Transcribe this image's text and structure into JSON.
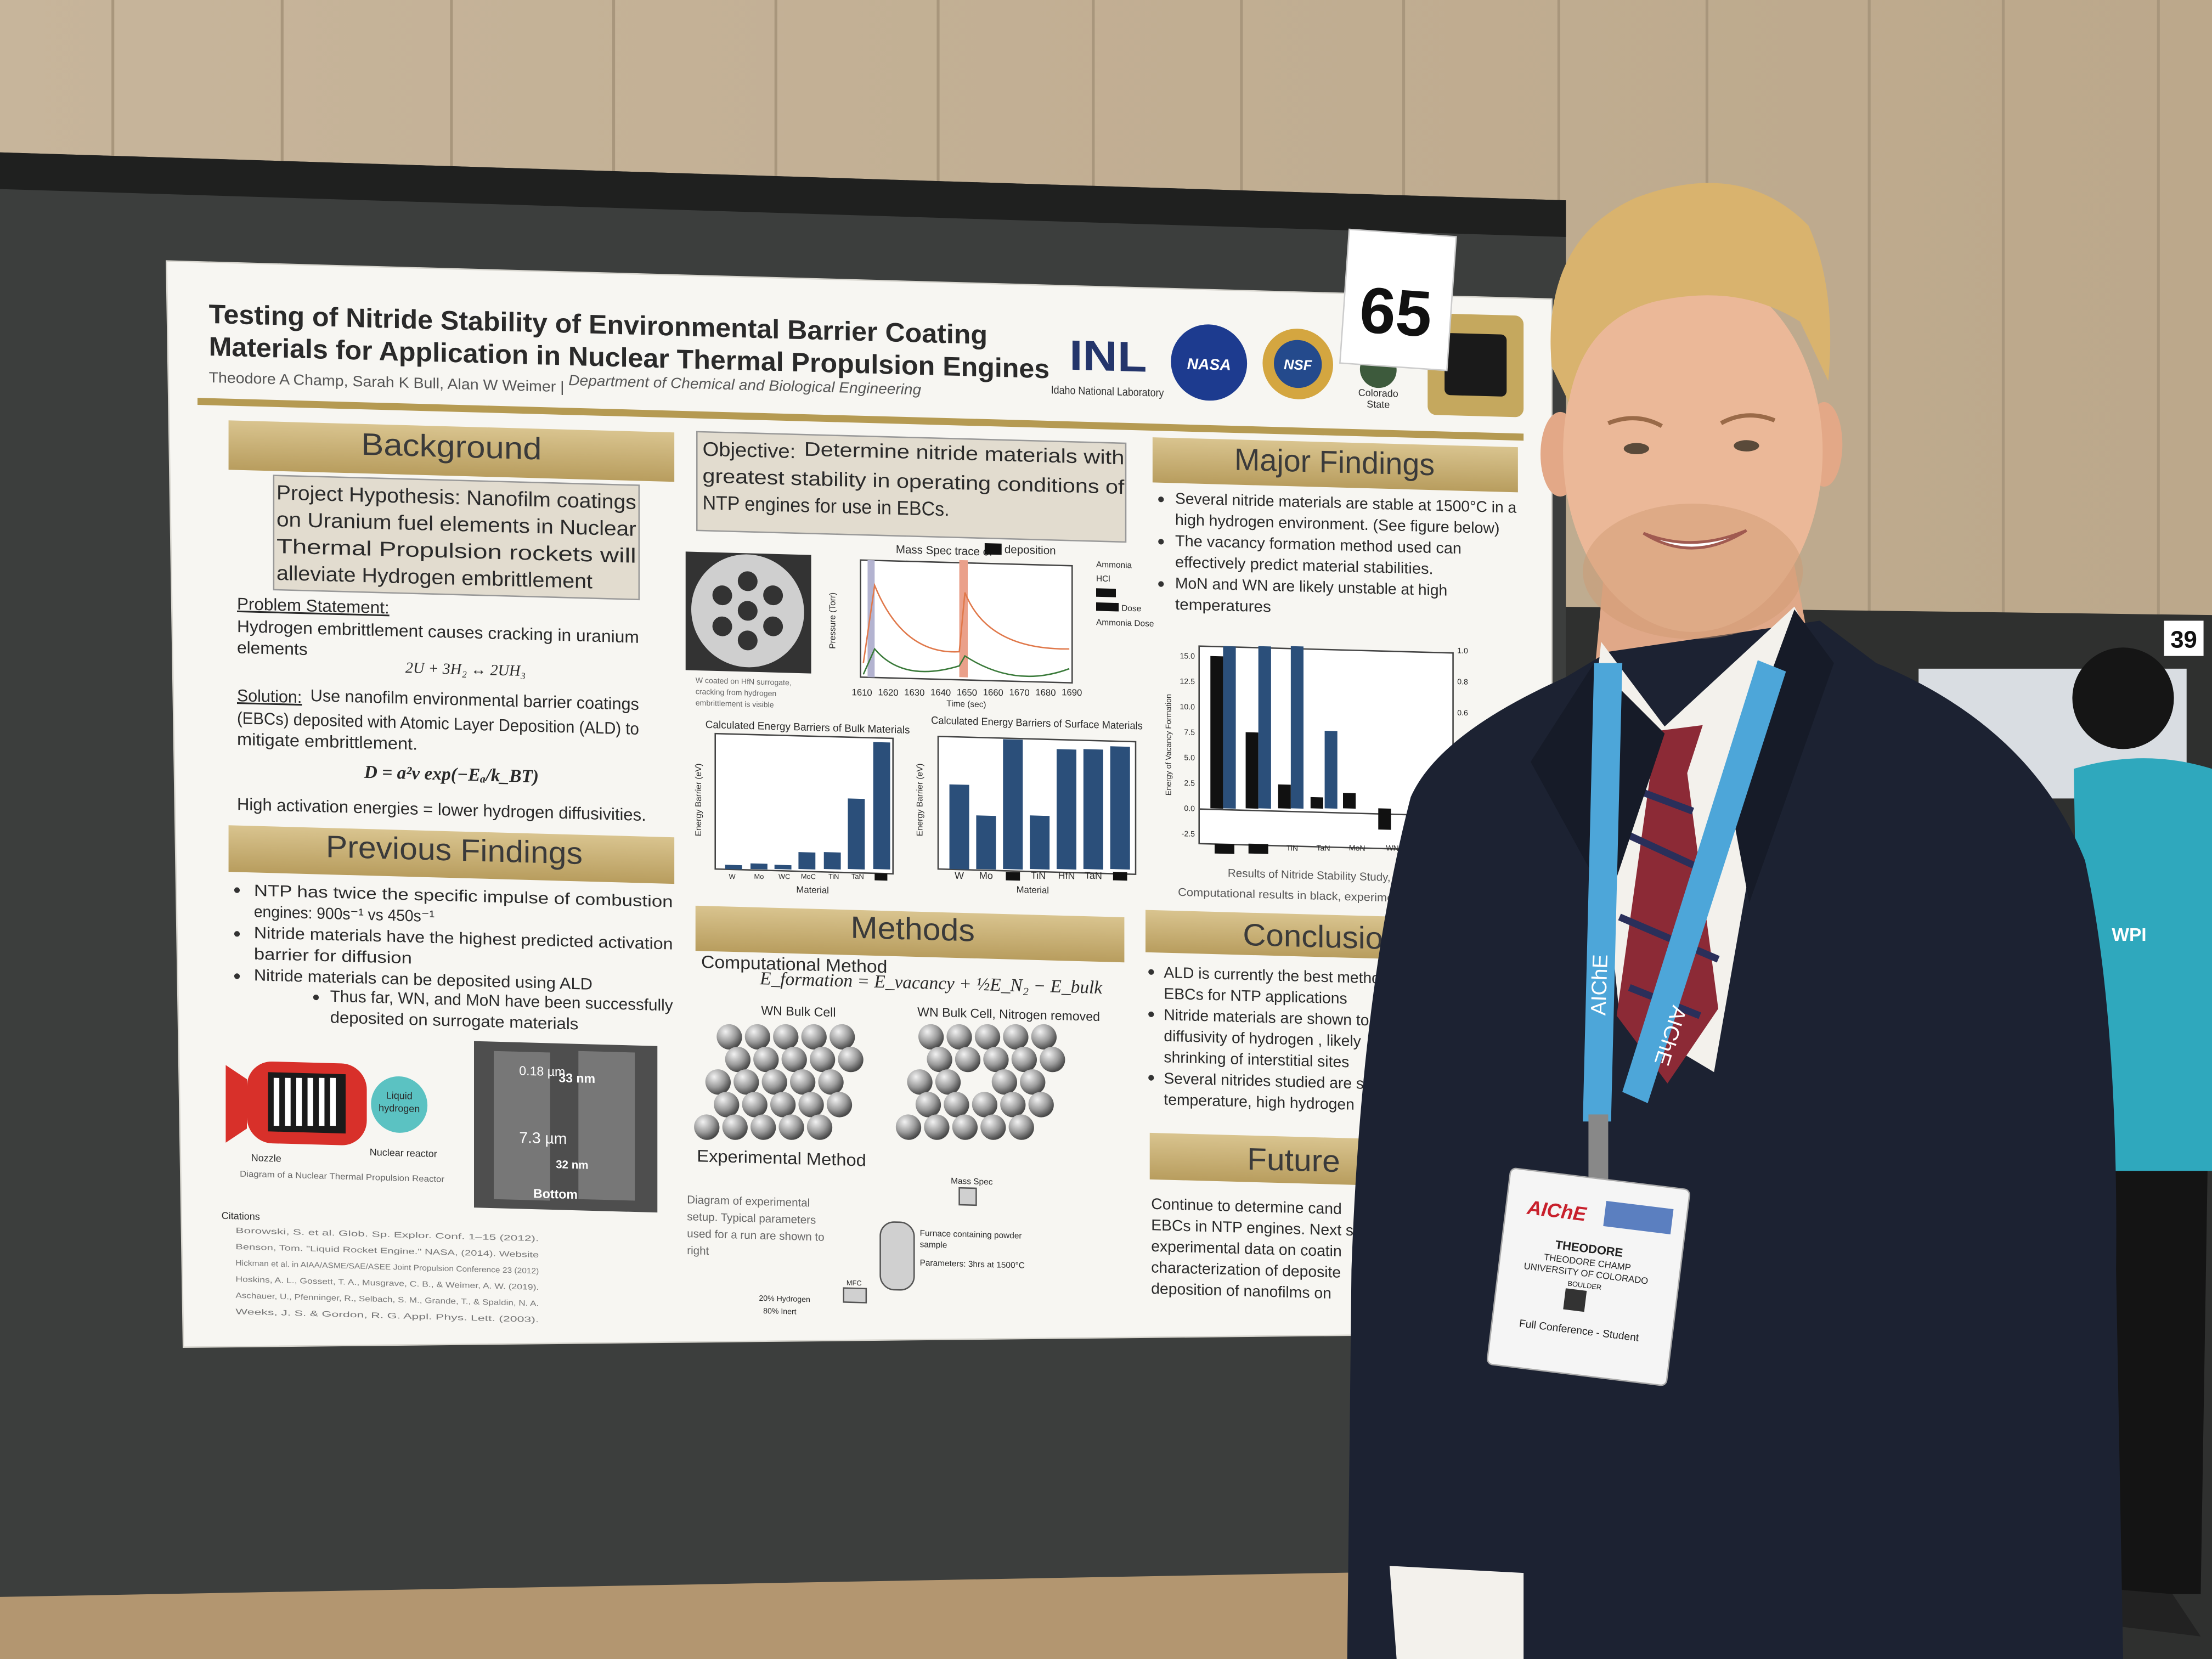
{
  "poster": {
    "title": [
      "Testing of Nitride Stability of Environmental Barrier Coating",
      "Materials for Application in Nuclear Thermal Propulsion Engines"
    ],
    "authors": "Theodore A Champ, Sarah K Bull, Alan W Weimer |",
    "department": "Department of Chemical and Biological Engineering",
    "logos": [
      "INL",
      "Idaho National Laboratory",
      "NASA",
      "NSF",
      "Colorado",
      "State"
    ],
    "background": {
      "heading": "Background",
      "hypothesis": [
        "Project Hypothesis: Nanofilm coatings",
        "on Uranium fuel elements in Nuclear",
        "Thermal Propulsion rockets will",
        "alleviate Hydrogen embrittlement"
      ],
      "problem_label": "Problem Statement:",
      "problem": [
        "Hydrogen embrittlement causes cracking in uranium",
        "elements"
      ],
      "reaction": "2U + 3H₂ ↔ 2UH₃",
      "solution_label": "Solution:",
      "solution": [
        "Use nanofilm environmental barrier coatings",
        "(EBCs) deposited with Atomic Layer Deposition (ALD) to",
        "mitigate embrittlement."
      ],
      "diffusivity": "D = a²v exp(−Eₐ/k_BT)",
      "note": "High activation energies = lower hydrogen diffusivities."
    },
    "previous_findings": {
      "heading": "Previous Findings",
      "bullets": [
        "NTP has twice the specific impulse of combustion",
        "engines: 900s⁻¹ vs 450s⁻¹",
        "Nitride materials have the highest predicted activation",
        "barrier for diffusion",
        "Nitride materials can be deposited using ALD",
        "Thus far, WN, and MoN have been successfully",
        "deposited on surrogate materials"
      ],
      "reactor_labels": [
        "Liquid",
        "hydrogen",
        "Nozzle",
        "Nuclear reactor"
      ],
      "reactor_caption": "Diagram of a Nuclear Thermal Propulsion Reactor",
      "sem_labels": [
        "0.18 µm",
        "33 nm",
        "7.3 µm",
        "32 nm",
        "Bottom"
      ],
      "citations_heading": "Citations",
      "citations": [
        "Borowski, S. et al. Glob. Sp. Explor. Conf. 1–15 (2012).",
        "Benson, Tom. \"Liquid Rocket Engine.\" NASA, (2014). Website",
        "Hickman et al. in AIAA/ASME/SAE/ASEE Joint Propulsion Conference 23 (2012)",
        "Hoskins, A. L., Gossett, T. A., Musgrave, C. B., & Weimer, A. W. (2019).",
        "Aschauer, U., Pfenninger, R., Selbach, S. M., Grande, T., & Spaldin, N. A.",
        "Weeks, J. S. & Gordon, R. G. Appl. Phys. Lett. (2003)."
      ]
    },
    "objective": {
      "label": "Objective:",
      "lines": [
        "Determine nitride materials with",
        "greatest stability in operating conditions of",
        "NTP engines for use in EBCs."
      ]
    },
    "image_caption": [
      "W coated on HfN surrogate,",
      "cracking from hydrogen",
      "embrittlement is visible"
    ],
    "mass_spec": {
      "title": [
        "Mass Spec trace of",
        "deposition"
      ],
      "legend": [
        "Ammonia",
        "HCl",
        "Dose",
        "Ammonia Dose"
      ],
      "y_label": "Pressure (Torr)",
      "x_label": "Time (sec)",
      "xticks": [
        1610,
        1620,
        1630,
        1640,
        1650,
        1660,
        1670,
        1680,
        1690
      ]
    },
    "bulk_chart": {
      "title": "Calculated Energy Barriers of Bulk Materials",
      "y_label": "Energy Barrier (eV)",
      "x_label": "Material",
      "categories": [
        "W",
        "Mo",
        "WC",
        "MoC",
        "TiN",
        "TaN"
      ]
    },
    "surface_chart": {
      "title": "Calculated Energy Barriers of Surface Materials",
      "y_label": "Energy Barrier (eV)",
      "x_label": "Material",
      "categories": [
        "W",
        "Mo",
        "TiN",
        "HfN",
        "TaN"
      ]
    },
    "methods": {
      "heading": "Methods",
      "computational": "Computational Method",
      "equation": "E_formation = E_vacancy + ½E_N₂ − E_bulk",
      "cell_labels": [
        "WN Bulk Cell",
        "WN Bulk Cell, Nitrogen removed"
      ],
      "experimental": "Experimental Method",
      "setup_caption": [
        "Diagram of experimental",
        "setup. Typical parameters",
        "used for a run are shown to",
        "right"
      ],
      "setup_labels": [
        "Mass Spec",
        "Furnace containing powder",
        "sample",
        "Parameters: 3hrs at 1500°C",
        "20% Hydrogen",
        "80% Inert",
        "MFC"
      ]
    },
    "major_findings": {
      "heading": "Major Findings",
      "bullets": [
        "Several nitride materials are stable at 1500°C in a",
        "high hydrogen environment. (See figure below)",
        "The vacancy formation method used can",
        "effectively predict material stabilities.",
        "MoN and WN are likely unstable at high",
        "temperatures"
      ],
      "chart": {
        "y_label": "Energy of Vacancy Formation",
        "yticks": [
          "15.0",
          "12.5",
          "10.0",
          "7.5",
          "5.0",
          "2.5",
          "0.0",
          "-2.5"
        ],
        "y2ticks": [
          "1.0",
          "0.8",
          "0.6"
        ],
        "categories": [
          "TiN",
          "TaN",
          "MoN",
          "WN"
        ]
      },
      "caption": [
        "Results of Nitride Stability Study,",
        "Computational results in black, experiment"
      ]
    },
    "conclusion": {
      "heading": "Conclusion",
      "lines": [
        "ALD is currently the best metho",
        "EBCs for NTP applications",
        "Nitride materials are shown to",
        "diffusivity of hydrogen , likely",
        "shrinking of interstitial sites",
        "Several nitrides studied are s",
        "temperature, high hydrogen"
      ]
    },
    "future": {
      "heading": "Future",
      "lines": [
        "Continue to determine cand",
        "EBCs in NTP engines. Next s",
        "experimental data on coatin",
        "characterization of deposite",
        "deposition of nanofilms on"
      ]
    }
  },
  "board_number": "65",
  "neighbor_number": "39",
  "neighbor_shirt": "WPI",
  "lanyard": [
    "AIChE",
    "AIChE"
  ],
  "badge": {
    "org": "AIChE",
    "first_name": "THEODORE",
    "full_name": "THEODORE CHAMP",
    "school": "UNIVERSITY OF COLORADO",
    "city": "BOULDER",
    "registration": "Full Conference - Student"
  }
}
